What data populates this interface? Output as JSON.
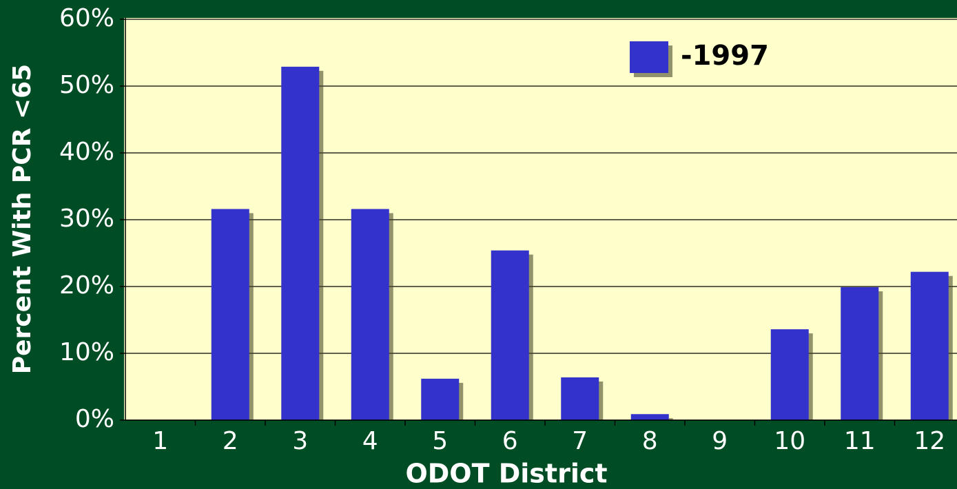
{
  "chart_data": {
    "type": "bar",
    "xlabel": "ODOT District",
    "ylabel": "Percent With PCR <65",
    "categories": [
      "1",
      "2",
      "3",
      "4",
      "5",
      "6",
      "7",
      "8",
      "9",
      "10",
      "11",
      "12"
    ],
    "series": [
      {
        "name": "-1997",
        "color": "#3333cc",
        "values": [
          0,
          31.6,
          52.9,
          31.6,
          6.2,
          25.4,
          6.4,
          0.9,
          0,
          13.6,
          19.9,
          22.2
        ]
      }
    ],
    "ylim": [
      0,
      60
    ],
    "yticks": [
      {
        "value": 0,
        "label": "0%"
      },
      {
        "value": 10,
        "label": "10%"
      },
      {
        "value": 20,
        "label": "20%"
      },
      {
        "value": 30,
        "label": "30%"
      },
      {
        "value": 40,
        "label": "40%"
      },
      {
        "value": 50,
        "label": "50%"
      },
      {
        "value": 60,
        "label": "60%"
      }
    ],
    "grid": true,
    "legend": "top-right"
  }
}
